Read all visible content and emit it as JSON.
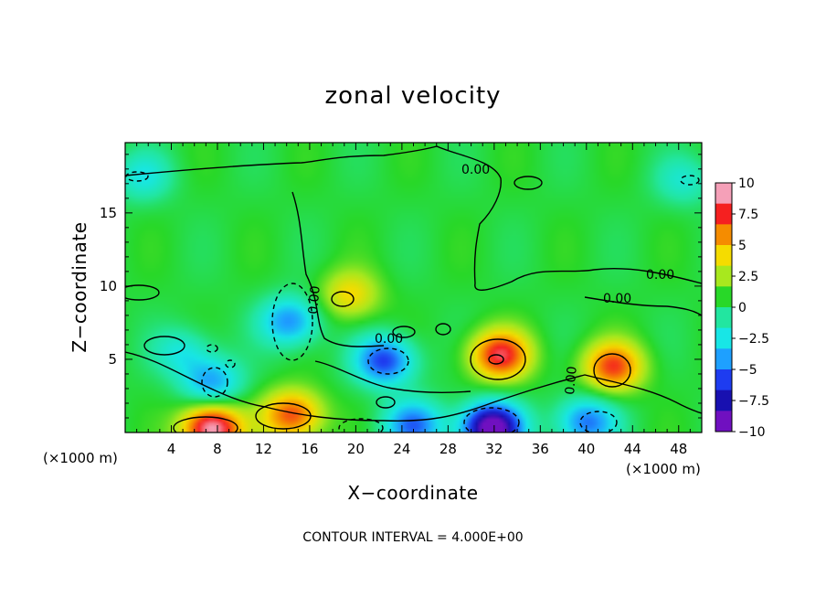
{
  "chart_data": {
    "type": "heatmap",
    "title": "zonal velocity",
    "xlabel": "X−coordinate",
    "ylabel": "Z−coordinate",
    "x_unit_label": "(×1000 m)",
    "y_unit_label": "(×1000 m)",
    "xlim": [
      0,
      50
    ],
    "ylim": [
      0,
      19.8
    ],
    "x_ticks": [
      4,
      8,
      12,
      16,
      20,
      24,
      28,
      32,
      36,
      40,
      44,
      48
    ],
    "y_ticks": [
      5,
      10,
      15
    ],
    "colorbar": {
      "range": [
        -10,
        10
      ],
      "tick_values": [
        10,
        7.5,
        5,
        2.5,
        0,
        -2.5,
        -5,
        -7.5,
        -10
      ],
      "tick_labels": [
        "10",
        "7.5",
        "5",
        "2.5",
        "0",
        "−2.5",
        "−5",
        "−7.5",
        "−10"
      ],
      "colors": [
        "#f5a0b8",
        "#f52020",
        "#f58c00",
        "#f5dc00",
        "#a8e81e",
        "#28d828",
        "#22e6a0",
        "#18e6e6",
        "#1ea0ff",
        "#1e3cf0",
        "#1810b0",
        "#7010c0"
      ]
    },
    "contour_interval_text": "CONTOUR INTERVAL = 4.000E+00",
    "contour_labels": [
      "0.00",
      "0.00",
      "0.00",
      "0.00",
      "0.00",
      "0.00"
    ],
    "field_features": [
      {
        "x": 7.5,
        "z": 0.3,
        "value": 10,
        "kind": "max"
      },
      {
        "x": 14.5,
        "z": 1.2,
        "value": 7,
        "kind": "max"
      },
      {
        "x": 32.5,
        "z": 5.3,
        "value": 8,
        "kind": "max"
      },
      {
        "x": 42.3,
        "z": 4.5,
        "value": 7,
        "kind": "max"
      },
      {
        "x": 19.5,
        "z": 9.4,
        "value": 4,
        "kind": "max"
      },
      {
        "x": 31.8,
        "z": 0.3,
        "value": -12,
        "kind": "min"
      },
      {
        "x": 22.5,
        "z": 4.9,
        "value": -7,
        "kind": "min"
      },
      {
        "x": 14.3,
        "z": 7.6,
        "value": -5.5,
        "kind": "min"
      },
      {
        "x": 7.5,
        "z": 3.4,
        "value": -5,
        "kind": "min"
      },
      {
        "x": 25,
        "z": 0.5,
        "value": -6,
        "kind": "min"
      },
      {
        "x": 40,
        "z": 0.7,
        "value": -6,
        "kind": "min"
      },
      {
        "x": 1.5,
        "z": 17.5,
        "value": -3,
        "kind": "min"
      },
      {
        "x": 48.5,
        "z": 17.2,
        "value": -2.5,
        "kind": "min"
      },
      {
        "x": 5,
        "z": 5.5,
        "value": -3,
        "kind": "min"
      }
    ]
  }
}
